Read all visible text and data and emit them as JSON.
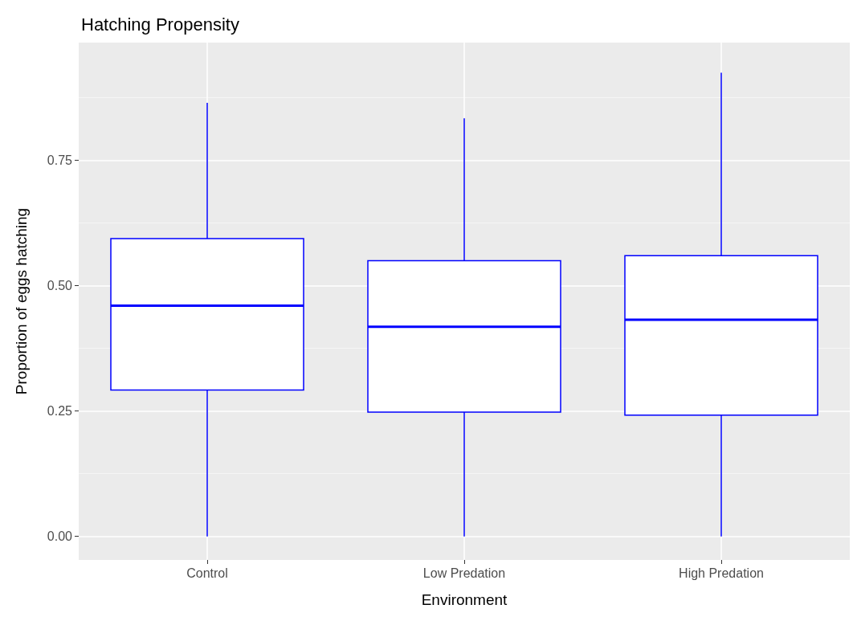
{
  "chart_data": {
    "type": "box",
    "title": "Hatching Propensity",
    "xlabel": "Environment",
    "ylabel": "Proportion of eggs hatching",
    "categories": [
      "Control",
      "Low Predation",
      "High Predation"
    ],
    "series": [
      {
        "color": "#0000ff",
        "boxes": [
          {
            "low": 0,
            "q1": 0.292,
            "median": 0.46,
            "q3": 0.594,
            "high": 0.865
          },
          {
            "low": 0,
            "q1": 0.248,
            "median": 0.418,
            "q3": 0.55,
            "high": 0.834
          },
          {
            "low": 0,
            "q1": 0.242,
            "median": 0.432,
            "q3": 0.56,
            "high": 0.925
          }
        ]
      }
    ],
    "ylim": [
      -0.047,
      0.985
    ],
    "yticks": [
      {
        "value": 0,
        "label": "0.00"
      },
      {
        "value": 0.25,
        "label": "0.25"
      },
      {
        "value": 0.5,
        "label": "0.50"
      },
      {
        "value": 0.75,
        "label": "0.75"
      }
    ],
    "grid": true
  }
}
